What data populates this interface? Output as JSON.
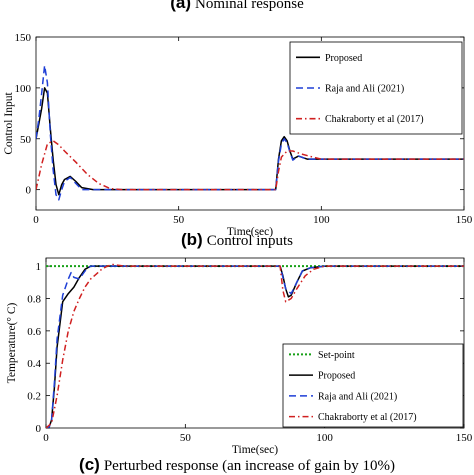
{
  "captions": {
    "a": {
      "letter": "(a)",
      "text": "Nominal response"
    },
    "b": {
      "letter": "(b)",
      "text": "Control inputs"
    },
    "c": {
      "letter": "(c)",
      "text": "Perturbed response (an increase of gain by 10%)"
    }
  },
  "colors": {
    "proposed": "#000000",
    "raja": "#1f3fd6",
    "chakraborty": "#d02020",
    "setpoint": "#17a017"
  },
  "chart_data": [
    {
      "type": "line",
      "xlabel": "Time(sec)",
      "ylabel": "Control Input",
      "xlim": [
        0,
        150
      ],
      "ylim": [
        -20,
        150
      ],
      "xticks": [
        0,
        50,
        100,
        150
      ],
      "yticks": [
        0,
        50,
        100,
        150
      ],
      "xtick_labels": [
        "0",
        "50",
        "100",
        "150"
      ],
      "ytick_labels": [
        "0",
        "50",
        "100",
        "150"
      ],
      "legend_position": "top-right",
      "series": [
        {
          "name": "Proposed",
          "style": "solid",
          "color": "#000000",
          "x": [
            0,
            1,
            2,
            3,
            4,
            5,
            6,
            7,
            8,
            9,
            10,
            12,
            14,
            16,
            20,
            30,
            60,
            84,
            85,
            86,
            87,
            88,
            89,
            90,
            92,
            95,
            100,
            110,
            120,
            150
          ],
          "y": [
            50,
            65,
            80,
            100,
            95,
            60,
            30,
            5,
            -5,
            5,
            10,
            13,
            8,
            2,
            0,
            0,
            0,
            0,
            30,
            48,
            52,
            48,
            38,
            30,
            33,
            30,
            30,
            30,
            30,
            30
          ]
        },
        {
          "name": "Raja and Ali (2021)",
          "style": "dashed",
          "color": "#1f3fd6",
          "x": [
            0,
            1,
            2,
            3,
            4,
            5,
            6,
            7,
            8,
            9,
            10,
            12,
            14,
            16,
            20,
            30,
            60,
            84,
            85,
            86,
            87,
            88,
            89,
            90,
            92,
            95,
            100,
            110,
            120,
            150
          ],
          "y": [
            50,
            70,
            95,
            122,
            105,
            55,
            20,
            -5,
            -10,
            0,
            8,
            12,
            6,
            0,
            0,
            0,
            0,
            0,
            28,
            45,
            50,
            46,
            37,
            29,
            33,
            30,
            30,
            30,
            30,
            30
          ]
        },
        {
          "name": "Chakraborty et al (2017)",
          "style": "dashdot",
          "color": "#d02020",
          "x": [
            0,
            2,
            4,
            6,
            8,
            10,
            14,
            18,
            22,
            26,
            30,
            40,
            60,
            84,
            85,
            86,
            88,
            90,
            93,
            97,
            100,
            110,
            120,
            150
          ],
          "y": [
            0,
            25,
            45,
            48,
            44,
            38,
            27,
            15,
            6,
            1,
            0,
            0,
            0,
            0,
            18,
            32,
            38,
            38,
            35,
            32,
            30,
            30,
            30,
            30
          ]
        }
      ]
    },
    {
      "type": "line",
      "xlabel": "Time(sec)",
      "ylabel": "Temperature(° C)",
      "xlim": [
        0,
        150
      ],
      "ylim": [
        0,
        1.05
      ],
      "xticks": [
        0,
        50,
        100,
        150
      ],
      "yticks": [
        0,
        0.2,
        0.4,
        0.6,
        0.8,
        1
      ],
      "xtick_labels": [
        "0",
        "50",
        "100",
        "150"
      ],
      "ytick_labels": [
        "0",
        "0.2",
        "0.4",
        "0.6",
        "0.8",
        "1"
      ],
      "legend_position": "bottom-right",
      "series": [
        {
          "name": "Set-point",
          "style": "dotted",
          "color": "#17a017",
          "x": [
            0,
            150
          ],
          "y": [
            1,
            1
          ]
        },
        {
          "name": "Proposed",
          "style": "solid",
          "color": "#000000",
          "x": [
            0,
            1,
            2,
            3,
            4,
            6,
            8,
            10,
            12,
            14,
            16,
            18,
            20,
            25,
            30,
            84,
            85,
            86,
            87,
            88,
            90,
            92,
            95,
            100,
            150
          ],
          "y": [
            0,
            0,
            0.05,
            0.25,
            0.5,
            0.78,
            0.83,
            0.87,
            0.93,
            0.98,
            1.0,
            1.0,
            1.0,
            1.0,
            1.0,
            1.0,
            0.94,
            0.86,
            0.81,
            0.82,
            0.9,
            0.97,
            0.99,
            1.0,
            1.0
          ]
        },
        {
          "name": "Raja and Ali (2021)",
          "style": "dashed",
          "color": "#1f3fd6",
          "x": [
            0,
            1,
            2,
            3,
            4,
            6,
            8,
            9,
            10,
            12,
            14,
            16,
            18,
            22,
            30,
            84,
            85,
            86,
            88,
            90,
            92,
            95,
            100,
            150
          ],
          "y": [
            0,
            0,
            0.05,
            0.28,
            0.55,
            0.82,
            0.92,
            0.96,
            0.93,
            0.92,
            0.97,
            1.0,
            1.0,
            1.0,
            1.0,
            1.0,
            0.93,
            0.86,
            0.83,
            0.9,
            0.97,
            0.99,
            1.0,
            1.0
          ]
        },
        {
          "name": "Chakraborty et al (2017)",
          "style": "dashdot",
          "color": "#d02020",
          "x": [
            0,
            2,
            4,
            6,
            8,
            10,
            12,
            14,
            16,
            18,
            20,
            22,
            24,
            28,
            30,
            84,
            85,
            86,
            88,
            90,
            93,
            96,
            100,
            105,
            110,
            150
          ],
          "y": [
            0,
            0.03,
            0.2,
            0.42,
            0.6,
            0.72,
            0.8,
            0.87,
            0.92,
            0.95,
            0.98,
            1.0,
            1.01,
            1.0,
            1.0,
            1.0,
            0.85,
            0.78,
            0.8,
            0.86,
            0.94,
            0.98,
            1.0,
            1.0,
            1.0,
            1.0
          ]
        }
      ]
    }
  ]
}
